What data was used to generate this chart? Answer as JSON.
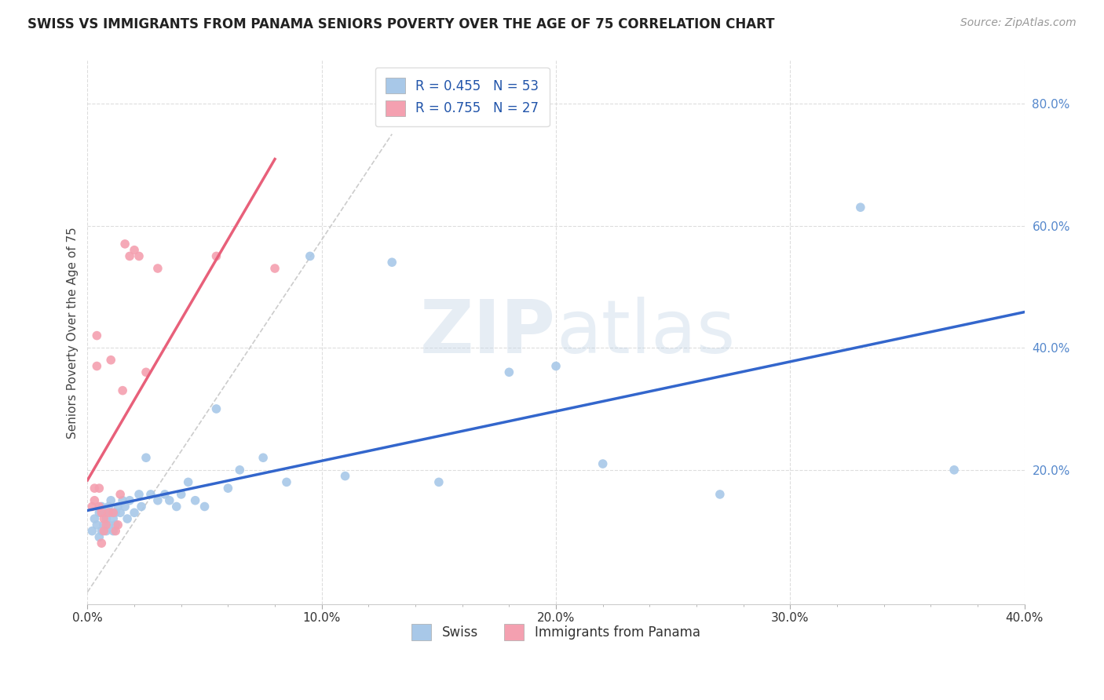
{
  "title": "SWISS VS IMMIGRANTS FROM PANAMA SENIORS POVERTY OVER THE AGE OF 75 CORRELATION CHART",
  "source": "Source: ZipAtlas.com",
  "ylabel": "Seniors Poverty Over the Age of 75",
  "xlim": [
    0.0,
    0.4
  ],
  "ylim": [
    -0.02,
    0.87
  ],
  "xtick_labels": [
    "0.0%",
    "",
    "",
    "",
    "",
    "10.0%",
    "",
    "",
    "",
    "",
    "20.0%",
    "",
    "",
    "",
    "",
    "30.0%",
    "",
    "",
    "",
    "",
    "40.0%"
  ],
  "xtick_vals": [
    0.0,
    0.02,
    0.04,
    0.06,
    0.08,
    0.1,
    0.12,
    0.14,
    0.16,
    0.18,
    0.2,
    0.22,
    0.24,
    0.26,
    0.28,
    0.3,
    0.32,
    0.34,
    0.36,
    0.38,
    0.4
  ],
  "ytick_labels": [
    "20.0%",
    "40.0%",
    "60.0%",
    "80.0%"
  ],
  "ytick_vals": [
    0.2,
    0.4,
    0.6,
    0.8
  ],
  "swiss_color": "#a8c8e8",
  "panama_color": "#f4a0b0",
  "swiss_line_color": "#3366cc",
  "panama_line_color": "#e8607a",
  "diagonal_color": "#cccccc",
  "watermark_zip": "ZIP",
  "watermark_atlas": "atlas",
  "legend_R_swiss": "R = 0.455",
  "legend_N_swiss": "N = 53",
  "legend_R_panama": "R = 0.755",
  "legend_N_panama": "N = 27",
  "swiss_x": [
    0.002,
    0.003,
    0.004,
    0.005,
    0.005,
    0.006,
    0.006,
    0.007,
    0.007,
    0.008,
    0.008,
    0.009,
    0.009,
    0.01,
    0.01,
    0.011,
    0.011,
    0.012,
    0.012,
    0.013,
    0.014,
    0.015,
    0.016,
    0.017,
    0.018,
    0.02,
    0.022,
    0.023,
    0.025,
    0.027,
    0.03,
    0.033,
    0.035,
    0.038,
    0.04,
    0.043,
    0.046,
    0.05,
    0.055,
    0.06,
    0.065,
    0.075,
    0.085,
    0.095,
    0.11,
    0.13,
    0.15,
    0.18,
    0.2,
    0.22,
    0.27,
    0.33,
    0.37
  ],
  "swiss_y": [
    0.1,
    0.12,
    0.11,
    0.13,
    0.09,
    0.1,
    0.14,
    0.11,
    0.13,
    0.1,
    0.12,
    0.14,
    0.11,
    0.13,
    0.15,
    0.12,
    0.1,
    0.13,
    0.11,
    0.14,
    0.13,
    0.15,
    0.14,
    0.12,
    0.15,
    0.13,
    0.16,
    0.14,
    0.22,
    0.16,
    0.15,
    0.16,
    0.15,
    0.14,
    0.16,
    0.18,
    0.15,
    0.14,
    0.3,
    0.17,
    0.2,
    0.22,
    0.18,
    0.55,
    0.19,
    0.54,
    0.18,
    0.36,
    0.37,
    0.21,
    0.16,
    0.63,
    0.2
  ],
  "panama_x": [
    0.002,
    0.003,
    0.003,
    0.004,
    0.004,
    0.005,
    0.005,
    0.006,
    0.006,
    0.007,
    0.007,
    0.008,
    0.009,
    0.01,
    0.011,
    0.012,
    0.013,
    0.014,
    0.015,
    0.016,
    0.018,
    0.02,
    0.022,
    0.025,
    0.03,
    0.055,
    0.08
  ],
  "panama_y": [
    0.14,
    0.17,
    0.15,
    0.42,
    0.37,
    0.17,
    0.14,
    0.13,
    0.08,
    0.12,
    0.1,
    0.11,
    0.13,
    0.38,
    0.13,
    0.1,
    0.11,
    0.16,
    0.33,
    0.57,
    0.55,
    0.56,
    0.55,
    0.36,
    0.53,
    0.55,
    0.53
  ],
  "background_color": "#ffffff",
  "plot_bg_color": "#ffffff",
  "grid_color": "#dddddd"
}
